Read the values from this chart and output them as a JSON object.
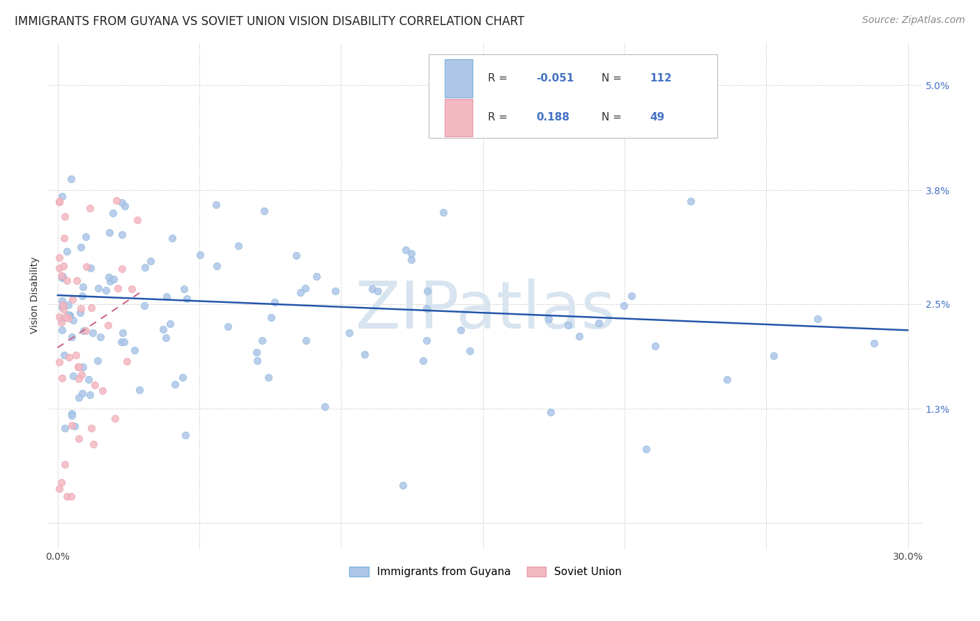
{
  "title": "IMMIGRANTS FROM GUYANA VS SOVIET UNION VISION DISABILITY CORRELATION CHART",
  "source": "Source: ZipAtlas.com",
  "ylabel": "Vision Disability",
  "ytick_vals": [
    0.0,
    0.013,
    0.025,
    0.038,
    0.05
  ],
  "ytick_labels": [
    "",
    "1.3%",
    "2.5%",
    "3.8%",
    "5.0%"
  ],
  "xtick_vals": [
    0.0,
    0.05,
    0.1,
    0.15,
    0.2,
    0.25,
    0.3
  ],
  "xlim": [
    -0.003,
    0.305
  ],
  "ylim": [
    -0.003,
    0.055
  ],
  "legend_guyana_color": "#aec6e8",
  "legend_guyana_edge": "#7fb3d9",
  "legend_soviet_color": "#f4b8c1",
  "legend_soviet_edge": "#e89aaa",
  "legend_R1": "-0.051",
  "legend_N1": "112",
  "legend_R2": "0.188",
  "legend_N2": "49",
  "legend_text_color": "#333333",
  "legend_value_color": "#4472c4",
  "guyana_color": "#aec6e8",
  "guyana_edge": "#7fb3d9",
  "soviet_color": "#f4b8c1",
  "soviet_edge": "#e89aaa",
  "trend_guyana_color": "#2255aa",
  "trend_soviet_color": "#cc6688",
  "bg_color": "#ffffff",
  "grid_color": "#cccccc",
  "watermark": "ZIPatlas",
  "watermark_color": "#d8e4ef",
  "scatter_size": 55,
  "guyana_trendline_x": [
    0.0,
    0.3
  ],
  "guyana_trendline_y": [
    0.026,
    0.022
  ],
  "soviet_trendline_x": [
    0.0,
    0.03
  ],
  "soviet_trendline_y": [
    0.02,
    0.0265
  ],
  "label_guyana": "Immigrants from Guyana",
  "label_soviet": "Soviet Union",
  "title_fontsize": 12,
  "source_fontsize": 10,
  "axis_label_fontsize": 10,
  "tick_fontsize": 10,
  "legend_fontsize": 11,
  "watermark_fontsize": 68
}
